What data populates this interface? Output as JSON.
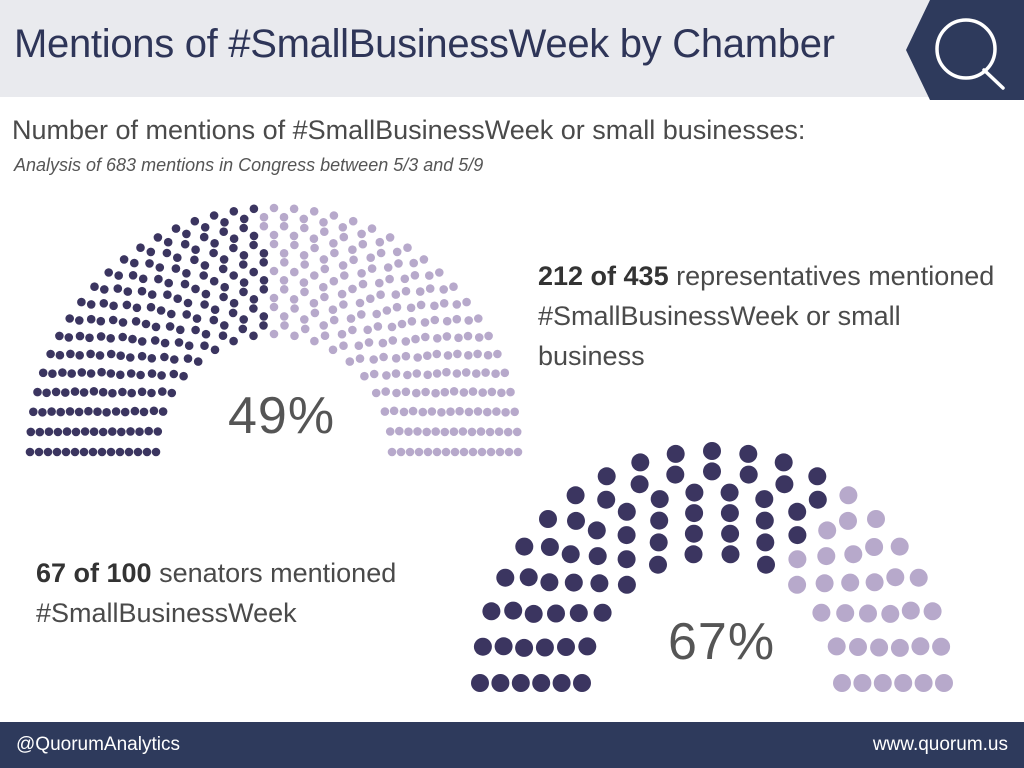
{
  "header": {
    "title": "Mentions of #SmallBusinessWeek by Chamber"
  },
  "subtitle": "Number of mentions of #SmallBusinessWeek or small businesses:",
  "analysis_note": "Analysis of 683 mentions in Congress between 5/3 and 5/9",
  "chart_data": [
    {
      "type": "parliament",
      "chamber": "House",
      "mentioned": 212,
      "total": 435,
      "percent_label": "49%",
      "description": {
        "bold": "212 of 435",
        "rest": " representatives mentioned #SmallBusinessWeek or small business"
      },
      "rows": 15,
      "colors": {
        "mentioned": "#3b3560",
        "not_mentioned": "#b7a9cb"
      }
    },
    {
      "type": "parliament",
      "chamber": "Senate",
      "mentioned": 67,
      "total": 100,
      "percent_label": "67%",
      "description": {
        "bold": "67 of 100",
        "rest": " senators mentioned #SmallBusinessWeek"
      },
      "rows": 6,
      "colors": {
        "mentioned": "#3b3560",
        "not_mentioned": "#b7a9cb"
      }
    }
  ],
  "footer": {
    "left": "@QuorumAnalytics",
    "right": "www.quorum.us"
  },
  "colors": {
    "header_bg": "#e9eaee",
    "navy": "#2e3a5c",
    "title": "#2e3558"
  }
}
